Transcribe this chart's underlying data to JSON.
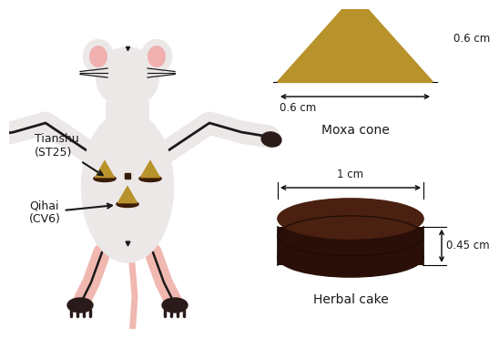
{
  "bg_color": "#ffffff",
  "mouse_body_color": "#ede8e8",
  "mouse_body_edge": "#1a1a1a",
  "ear_inner_color": "#f0b0b0",
  "tail_color": "#f0b8b0",
  "leg_color": "#f0b8b0",
  "paw_color": "#2a1a1a",
  "moxa_cone_fill": "#b8922a",
  "moxa_cone_edge": "#5a3a08",
  "moxa_base_color": "#3a1a08",
  "herbal_cake_top": "#4a2010",
  "herbal_cake_side": "#2a0f08",
  "herbal_cake_edge": "#1a0a04",
  "arrow_color": "#1a1a1a",
  "text_color": "#1a1a1a",
  "label_tianshu": "Tianshu\n(ST25)",
  "label_qihai": "Qihai\n(CV6)",
  "label_moxa": "Moxa cone",
  "label_cake": "Herbal cake",
  "dim_0_6_v": "0.6 cm",
  "dim_0_6_h": "0.6 cm",
  "dim_1": "1 cm",
  "dim_0_45": "0.45 cm"
}
